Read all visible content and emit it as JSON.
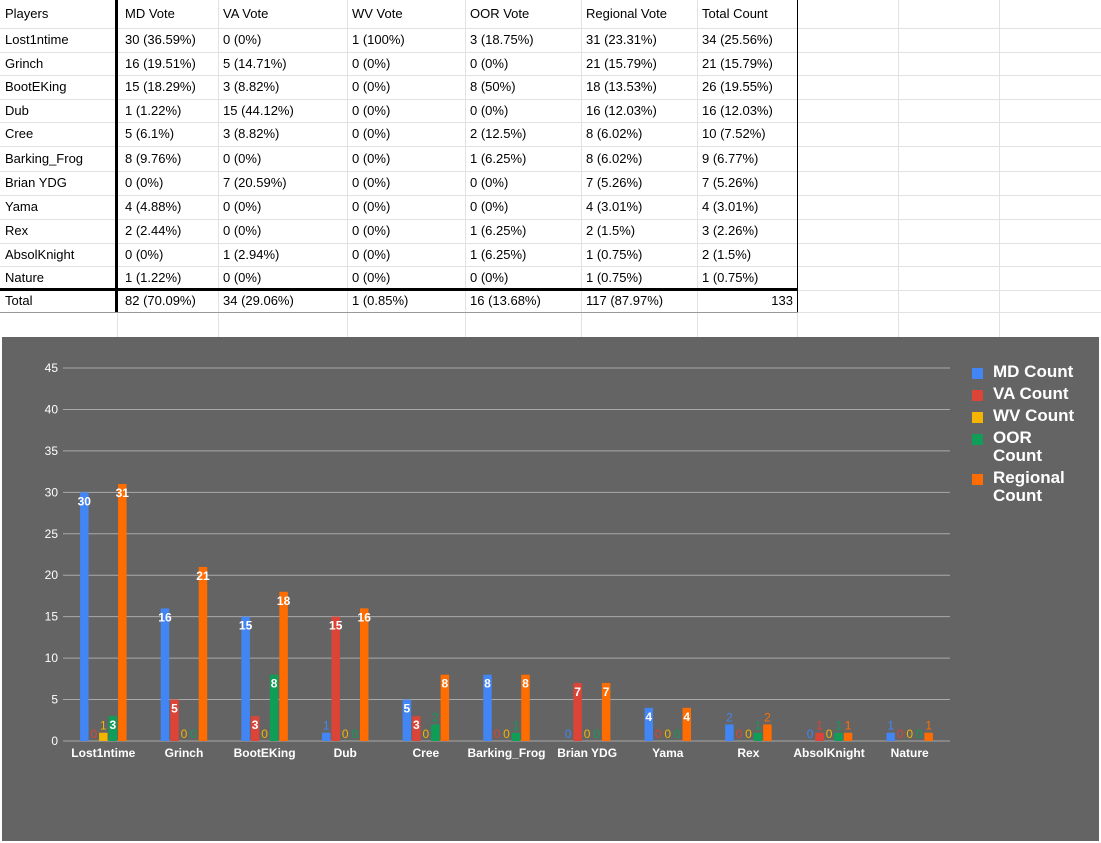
{
  "sheet": {
    "headers": [
      "Players",
      "MD Vote",
      "VA Vote",
      "WV Vote",
      "OOR Vote",
      "Regional Vote",
      "Total Count"
    ],
    "rows": [
      [
        "Lost1ntime",
        "30 (36.59%)",
        "0 (0%)",
        "1 (100%)",
        "3 (18.75%)",
        "31 (23.31%)",
        "34 (25.56%)"
      ],
      [
        "Grinch",
        "16 (19.51%)",
        "5 (14.71%)",
        "0 (0%)",
        "0 (0%)",
        "21 (15.79%)",
        "21 (15.79%)"
      ],
      [
        "BootEKing",
        "15 (18.29%)",
        "3 (8.82%)",
        "0 (0%)",
        "8 (50%)",
        "18 (13.53%)",
        "26 (19.55%)"
      ],
      [
        "Dub",
        "1 (1.22%)",
        "15 (44.12%)",
        "0 (0%)",
        "0 (0%)",
        "16 (12.03%)",
        "16 (12.03%)"
      ],
      [
        "Cree",
        "5 (6.1%)",
        "3 (8.82%)",
        "0 (0%)",
        "2 (12.5%)",
        "8 (6.02%)",
        "10 (7.52%)"
      ],
      [
        "Barking_Frog",
        "8 (9.76%)",
        "0 (0%)",
        "0 (0%)",
        "1 (6.25%)",
        "8 (6.02%)",
        "9 (6.77%)"
      ],
      [
        "Brian YDG",
        "0 (0%)",
        "7 (20.59%)",
        "0 (0%)",
        "0 (0%)",
        "7 (5.26%)",
        "7 (5.26%)"
      ],
      [
        "Yama",
        "4 (4.88%)",
        "0 (0%)",
        "0 (0%)",
        "0 (0%)",
        "4 (3.01%)",
        "4 (3.01%)"
      ],
      [
        "Rex",
        "2 (2.44%)",
        "0 (0%)",
        "0 (0%)",
        "1 (6.25%)",
        "2 (1.5%)",
        "3 (2.26%)"
      ],
      [
        "AbsolKnight",
        "0 (0%)",
        "1 (2.94%)",
        "0 (0%)",
        "1 (6.25%)",
        "1 (0.75%)",
        "2 (1.5%)"
      ],
      [
        "Nature",
        "1 (1.22%)",
        "0 (0%)",
        "0 (0%)",
        "0 (0%)",
        "1 (0.75%)",
        "1 (0.75%)"
      ]
    ],
    "total": [
      "Total",
      "82 (70.09%)",
      "34 (29.06%)",
      "1 (0.85%)",
      "16 (13.68%)",
      "117 (87.97%)",
      "133"
    ]
  },
  "chart_data": {
    "type": "bar",
    "categories": [
      "Lost1ntime",
      "Grinch",
      "BootEKing",
      "Dub",
      "Cree",
      "Barking_Frog",
      "Brian YDG",
      "Yama",
      "Rex",
      "AbsolKnight",
      "Nature"
    ],
    "series": [
      {
        "name": "MD Count",
        "color": "#4285f4",
        "values": [
          30,
          16,
          15,
          1,
          5,
          8,
          0,
          4,
          2,
          0,
          1
        ]
      },
      {
        "name": "VA Count",
        "color": "#db4437",
        "values": [
          0,
          5,
          3,
          15,
          3,
          0,
          7,
          0,
          0,
          1,
          0
        ]
      },
      {
        "name": "WV Count",
        "color": "#f4b400",
        "values": [
          1,
          0,
          0,
          0,
          0,
          0,
          0,
          0,
          0,
          0,
          0
        ]
      },
      {
        "name": "OOR Count",
        "color": "#0f9d58",
        "values": [
          3,
          0,
          8,
          0,
          2,
          1,
          0,
          0,
          1,
          1,
          0
        ]
      },
      {
        "name": "Regional Count",
        "color": "#ff6d01",
        "values": [
          31,
          21,
          18,
          16,
          8,
          8,
          7,
          4,
          2,
          1,
          1
        ]
      }
    ],
    "ylim": [
      0,
      45
    ],
    "yticks": [
      0,
      5,
      10,
      15,
      20,
      25,
      30,
      35,
      40,
      45
    ],
    "grid": true,
    "legend": "right",
    "background": "#646464"
  }
}
